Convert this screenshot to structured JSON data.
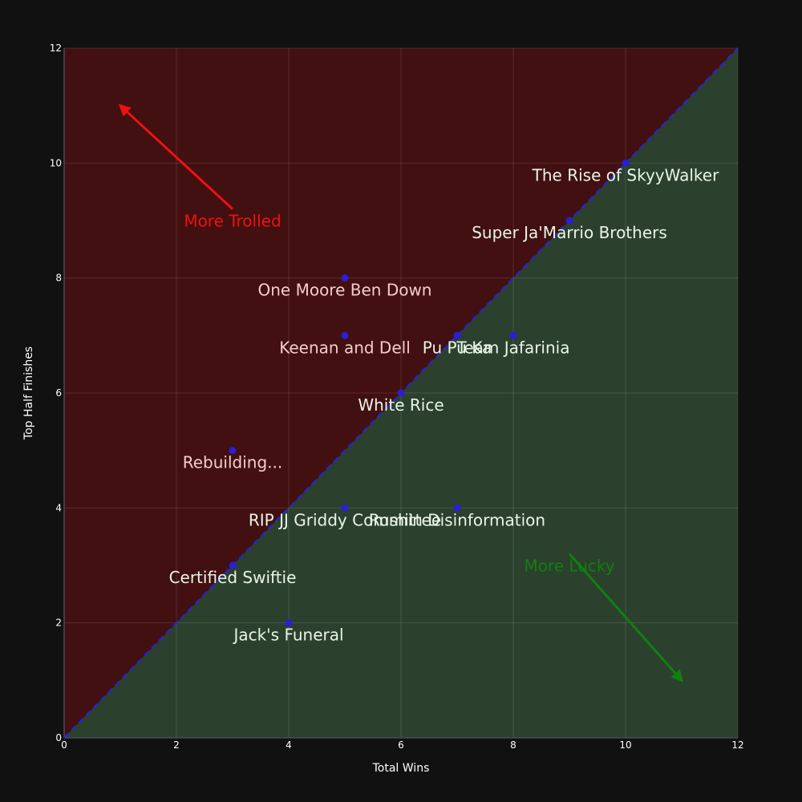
{
  "chart_data": {
    "type": "scatter",
    "xlabel": "Total Wins",
    "ylabel": "Top Half Finishes",
    "xlim": [
      0,
      12
    ],
    "ylim": [
      0,
      12
    ],
    "xticks": [
      "0",
      "2",
      "4",
      "6",
      "8",
      "10",
      "12"
    ],
    "yticks": [
      "0",
      "2",
      "4",
      "6",
      "8",
      "10",
      "12"
    ],
    "grid": true,
    "diagonal": {
      "from": [
        0,
        0
      ],
      "to": [
        12,
        12
      ],
      "style": "dashed",
      "color": "#2222ee"
    },
    "regions": {
      "above_diagonal": "#421011",
      "below_diagonal": "#2c402e"
    },
    "marker_color": "#2a1fd4",
    "points": [
      {
        "label": "The Rise of SkyyWalker",
        "x": 10,
        "y": 10
      },
      {
        "label": "Super Ja'Marrio Brothers",
        "x": 9,
        "y": 9
      },
      {
        "label": "One Moore Ben Down",
        "x": 5,
        "y": 8
      },
      {
        "label": "Pu Pu Ka",
        "x": 7,
        "y": 7
      },
      {
        "label": "Team Jafarinia",
        "x": 8,
        "y": 7
      },
      {
        "label": "Keenan and Dell",
        "x": 5,
        "y": 7
      },
      {
        "label": "White Rice",
        "x": 6,
        "y": 6
      },
      {
        "label": "Rebuilding...",
        "x": 3,
        "y": 5
      },
      {
        "label": "Rushin Disinformation",
        "x": 7,
        "y": 4
      },
      {
        "label": "RIP JJ Griddy Committee",
        "x": 5,
        "y": 4
      },
      {
        "label": "Certified Swiftie",
        "x": 3,
        "y": 3
      },
      {
        "label": "Jack's Funeral",
        "x": 4,
        "y": 2
      }
    ],
    "annotations": [
      {
        "text": "More Trolled",
        "color": "#ee1111",
        "tail": [
          3,
          9.2
        ],
        "head": [
          1,
          11
        ]
      },
      {
        "text": "More Lucky",
        "color": "#0f800f",
        "tail": [
          9,
          3.2
        ],
        "head": [
          11,
          1
        ]
      }
    ]
  }
}
